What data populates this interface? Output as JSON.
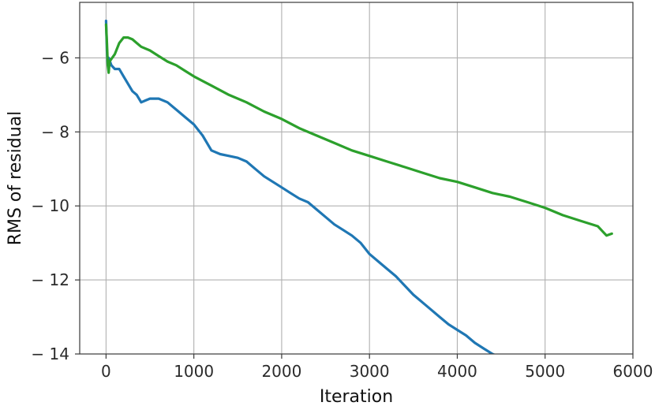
{
  "chart_data": {
    "type": "line",
    "title": "",
    "xlabel": "Iteration",
    "ylabel": "RMS of residual",
    "xlim": [
      -300,
      6000
    ],
    "ylim": [
      -14,
      -4.5
    ],
    "xticks": [
      0,
      1000,
      2000,
      3000,
      4000,
      5000,
      6000
    ],
    "yticks": [
      -6,
      -8,
      -10,
      -12,
      -14
    ],
    "xtick_labels": [
      "0",
      "1000",
      "2000",
      "3000",
      "4000",
      "5000",
      "6000"
    ],
    "ytick_labels": [
      "− 6",
      "− 8",
      "− 10",
      "− 12",
      "− 14"
    ],
    "grid": true,
    "series": [
      {
        "color": "#1f77b4",
        "x": [
          0,
          10,
          20,
          30,
          60,
          100,
          150,
          200,
          250,
          300,
          350,
          400,
          450,
          500,
          600,
          700,
          800,
          900,
          1000,
          1100,
          1200,
          1300,
          1400,
          1500,
          1600,
          1700,
          1800,
          1900,
          2000,
          2100,
          2200,
          2300,
          2400,
          2500,
          2600,
          2700,
          2800,
          2900,
          3000,
          3100,
          3200,
          3300,
          3400,
          3500,
          3600,
          3700,
          3800,
          3900,
          4000,
          4100,
          4200,
          4300,
          4400,
          4500,
          4600,
          4700,
          4740
        ],
        "y": [
          -5.0,
          -5.8,
          -6.2,
          -6.0,
          -6.2,
          -6.3,
          -6.3,
          -6.5,
          -6.7,
          -6.9,
          -7.0,
          -7.2,
          -7.15,
          -7.1,
          -7.1,
          -7.2,
          -7.4,
          -7.6,
          -7.8,
          -8.1,
          -8.5,
          -8.6,
          -8.65,
          -8.7,
          -8.8,
          -9.0,
          -9.2,
          -9.35,
          -9.5,
          -9.65,
          -9.8,
          -9.9,
          -10.1,
          -10.3,
          -10.5,
          -10.65,
          -10.8,
          -11.0,
          -11.3,
          -11.5,
          -11.7,
          -11.9,
          -12.15,
          -12.4,
          -12.6,
          -12.8,
          -13.0,
          -13.2,
          -13.35,
          -13.5,
          -13.7,
          -13.85,
          -14.0,
          -14.1,
          -14.2,
          -14.05,
          -14.1
        ]
      },
      {
        "color": "#2ca02c",
        "x": [
          0,
          10,
          20,
          30,
          40,
          100,
          150,
          200,
          250,
          300,
          350,
          400,
          500,
          600,
          700,
          800,
          900,
          1000,
          1200,
          1400,
          1600,
          1800,
          2000,
          2200,
          2400,
          2600,
          2800,
          3000,
          3200,
          3400,
          3600,
          3800,
          4000,
          4200,
          4400,
          4600,
          4800,
          5000,
          5200,
          5400,
          5600,
          5700,
          5760
        ],
        "y": [
          -5.1,
          -5.6,
          -6.2,
          -6.4,
          -6.1,
          -5.9,
          -5.6,
          -5.45,
          -5.45,
          -5.5,
          -5.6,
          -5.7,
          -5.8,
          -5.95,
          -6.1,
          -6.2,
          -6.35,
          -6.5,
          -6.75,
          -7.0,
          -7.2,
          -7.45,
          -7.65,
          -7.9,
          -8.1,
          -8.3,
          -8.5,
          -8.65,
          -8.8,
          -8.95,
          -9.1,
          -9.25,
          -9.35,
          -9.5,
          -9.65,
          -9.75,
          -9.9,
          -10.05,
          -10.25,
          -10.4,
          -10.55,
          -10.8,
          -10.75
        ]
      }
    ]
  }
}
